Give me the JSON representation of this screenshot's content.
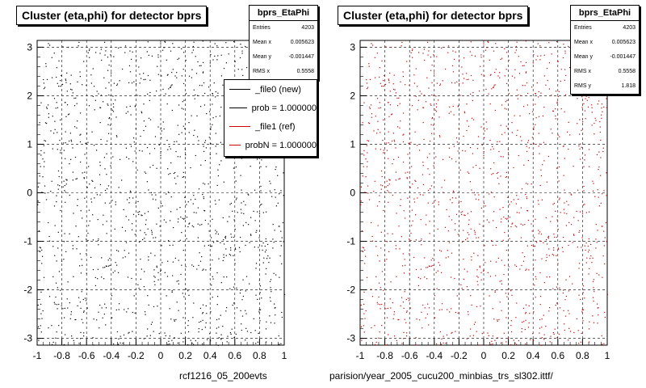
{
  "panels": [
    {
      "title": "Cluster (eta,phi) for detector bprs",
      "stats": {
        "title": "bprs_EtaPhi",
        "rows": [
          {
            "label": "Entries",
            "value": "4203"
          },
          {
            "label": "Mean x",
            "value": "0.005623"
          },
          {
            "label": "Mean y",
            "value": "-0.001447"
          },
          {
            "label": "RMS x",
            "value": "0.5558"
          }
        ]
      },
      "legend": [
        {
          "label": "_file0 (new)",
          "color": "#000000"
        },
        {
          "label": "prob = 1.000000",
          "color": "#000000"
        },
        {
          "label": "_file1 (ref)",
          "color": "#cc0000"
        },
        {
          "label": "probN = 1.000000",
          "color": "#cc0000"
        }
      ],
      "footer": "rcf1216_05_200evts"
    },
    {
      "title": "Cluster (eta,phi) for detector bprs",
      "stats": {
        "title": "bprs_EtaPhi",
        "rows": [
          {
            "label": "Entries",
            "value": "4203"
          },
          {
            "label": "Mean x",
            "value": "0.005623"
          },
          {
            "label": "Mean y",
            "value": "-0.001447"
          },
          {
            "label": "RMS x",
            "value": "0.5558"
          },
          {
            "label": "RMS y",
            "value": "1.818"
          }
        ]
      },
      "footer": "parision/year_2005_cucu200_minbias_trs_sl302.ittf/"
    }
  ],
  "chart_data": [
    {
      "type": "scatter",
      "title": "Cluster (eta,phi) for detector bprs",
      "xlim": [
        -1,
        1
      ],
      "ylim": [
        -3.14,
        3.14
      ],
      "x_ticks": [
        "-1",
        "-0.8",
        "-0.6",
        "-0.4",
        "-0.2",
        "0",
        "0.2",
        "0.4",
        "0.6",
        "0.8",
        "1"
      ],
      "y_ticks": [
        "-3",
        "-2",
        "-1",
        "0",
        "1",
        "2",
        "3"
      ],
      "grid": true,
      "marker_color": "#000000",
      "entries": 4203
    },
    {
      "type": "scatter",
      "title": "Cluster (eta,phi) for detector bprs",
      "xlim": [
        -1,
        1
      ],
      "ylim": [
        -3.14,
        3.14
      ],
      "x_ticks": [
        "-1",
        "-0.8",
        "-0.6",
        "-0.4",
        "-0.2",
        "0",
        "0.2",
        "0.4",
        "0.6",
        "0.8",
        "1"
      ],
      "y_ticks": [
        "-3",
        "-2",
        "-1",
        "0",
        "1",
        "2",
        "3"
      ],
      "grid": true,
      "marker_color": "#cc0000",
      "entries": 4203
    }
  ]
}
